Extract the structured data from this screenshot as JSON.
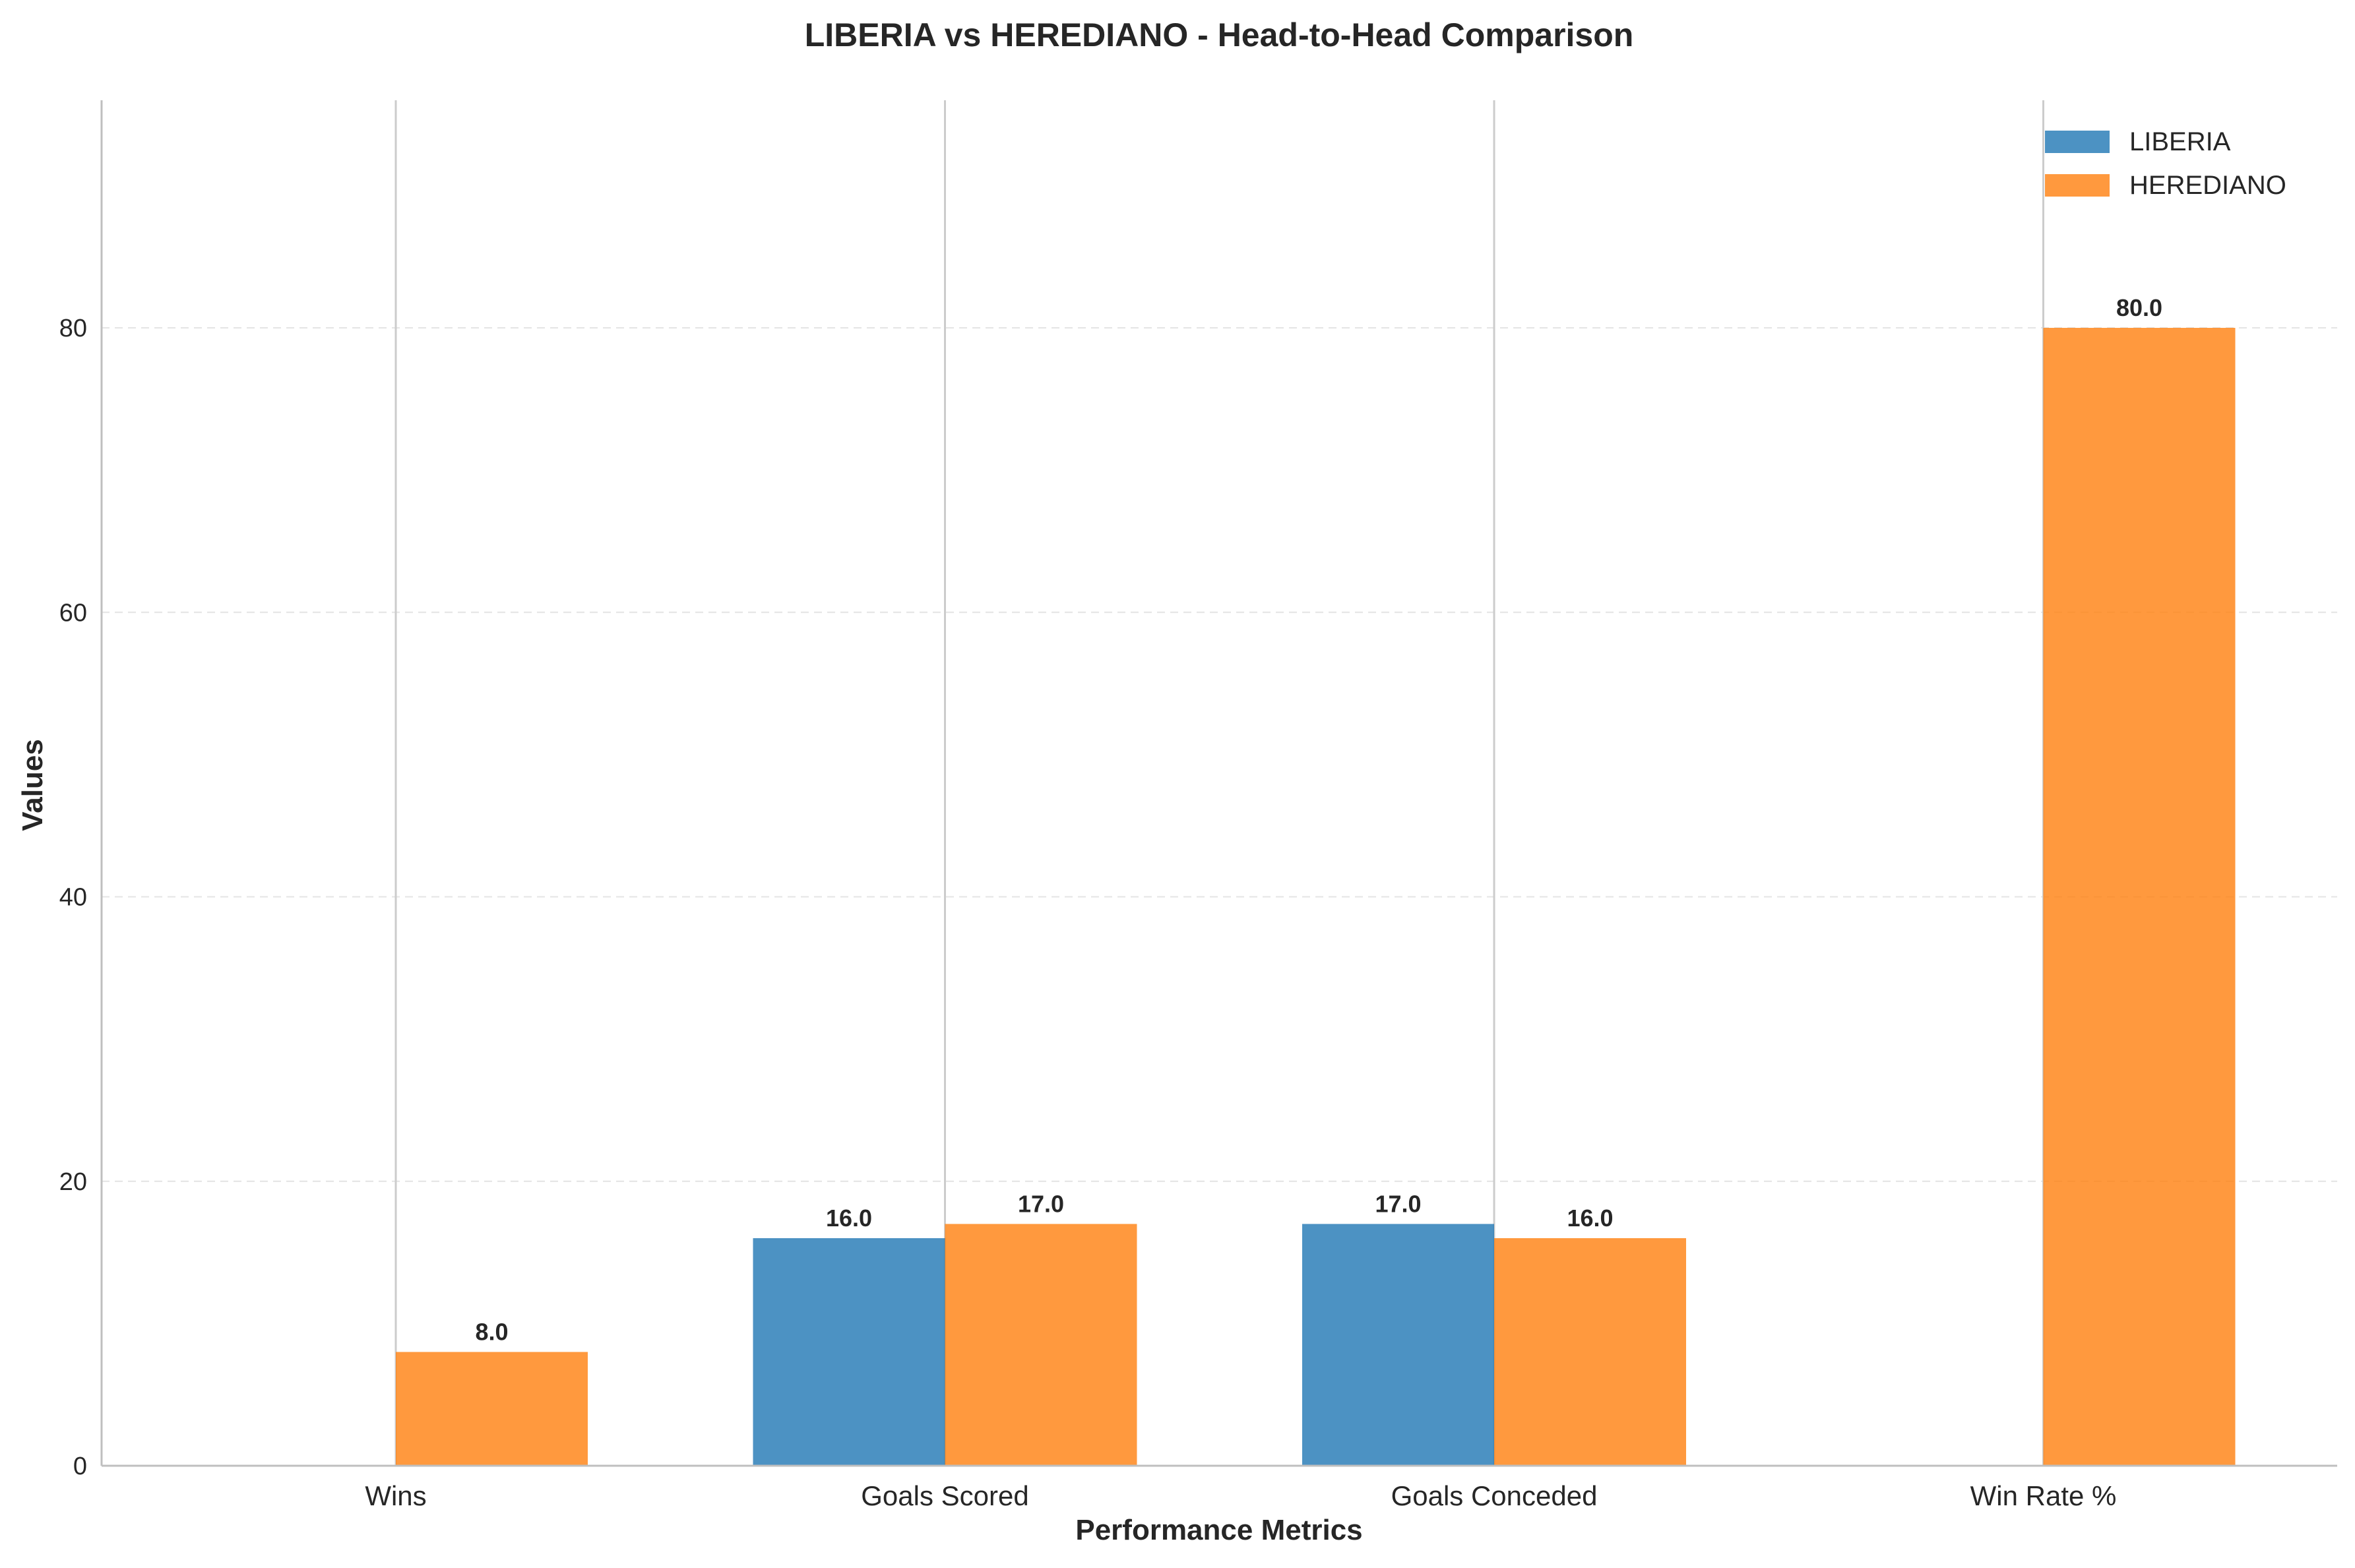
{
  "chart_data": {
    "type": "bar",
    "title": "LIBERIA vs HEREDIANO - Head-to-Head Comparison",
    "xlabel": "Performance Metrics",
    "ylabel": "Values",
    "categories": [
      "Wins",
      "Goals Scored",
      "Goals Conceded",
      "Win Rate %"
    ],
    "series": [
      {
        "name": "LIBERIA",
        "values": [
          0,
          16,
          17,
          0
        ],
        "color": "#1f77b4"
      },
      {
        "name": "HEREDIANO",
        "values": [
          8,
          17,
          16,
          80
        ],
        "color": "#ff7f0e"
      }
    ],
    "data_labels": [
      [
        null,
        "16.0",
        "17.0",
        null
      ],
      [
        "8.0",
        "17.0",
        "16.0",
        "80.0"
      ]
    ],
    "ylim": [
      0,
      96
    ],
    "yticks": [
      0,
      20,
      40,
      60,
      80
    ],
    "ytick_labels": [
      "0",
      "20",
      "40",
      "60",
      "80"
    ],
    "grid": "y-dashed",
    "legend_position": "top-right"
  }
}
